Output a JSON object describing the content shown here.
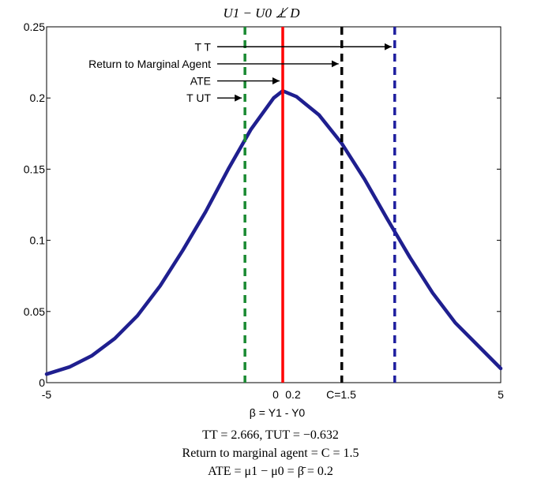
{
  "chart_data": {
    "type": "line",
    "title": "U1 − U0 ⊥̸ D",
    "xlabel": "β = Y1 - Y0",
    "ylabel": "",
    "xlim": [
      -5,
      5
    ],
    "ylim": [
      0,
      0.25
    ],
    "xticks": [
      "-5",
      "5"
    ],
    "yticks": [
      "0",
      "0.05",
      "0.1",
      "0.15",
      "0.2",
      "0.25"
    ],
    "grid": false,
    "series": [
      {
        "x": [
          -5,
          -4.5,
          -4,
          -3.5,
          -3,
          -2.5,
          -2,
          -1.5,
          -1,
          -0.5,
          0,
          0.2,
          0.5,
          1,
          1.5,
          2,
          2.5,
          3,
          3.5,
          4,
          4.5,
          5
        ],
        "y": [
          0.006,
          0.011,
          0.019,
          0.031,
          0.047,
          0.068,
          0.093,
          0.12,
          0.15,
          0.178,
          0.2,
          0.205,
          0.201,
          0.188,
          0.168,
          0.143,
          0.115,
          0.088,
          0.063,
          0.042,
          0.026,
          0.01
        ],
        "color": "#1f1f8f"
      }
    ],
    "vlines": [
      {
        "name": "TUT",
        "x": -0.632,
        "color": "#1a8a32",
        "style": "dashed"
      },
      {
        "name": "ATE",
        "x": 0.2,
        "color": "#ff0000",
        "style": "solid"
      },
      {
        "name": "Return to Marginal Agent",
        "x": 1.5,
        "color": "#000000",
        "style": "dashed"
      },
      {
        "name": "TT",
        "x": 2.666,
        "color": "#1f1f9f",
        "style": "dashed"
      }
    ],
    "annotations": [
      {
        "text": "T T",
        "target": "TT",
        "y": 0.236
      },
      {
        "text": "Return to Marginal Agent",
        "target": "Return to Marginal Agent",
        "y": 0.224
      },
      {
        "text": "ATE",
        "target": "ATE",
        "y": 0.212
      },
      {
        "text": "T UT",
        "target": "TUT",
        "y": 0.2
      }
    ],
    "x_annotations": [
      "0",
      "0.2",
      "C=1.5"
    ]
  },
  "captions": {
    "line1": "TT = 2.666, TUT = −0.632",
    "line2": "Return to marginal agent = C = 1.5",
    "line3": "ATE = μ1 − μ0 = β̄ = 0.2"
  }
}
